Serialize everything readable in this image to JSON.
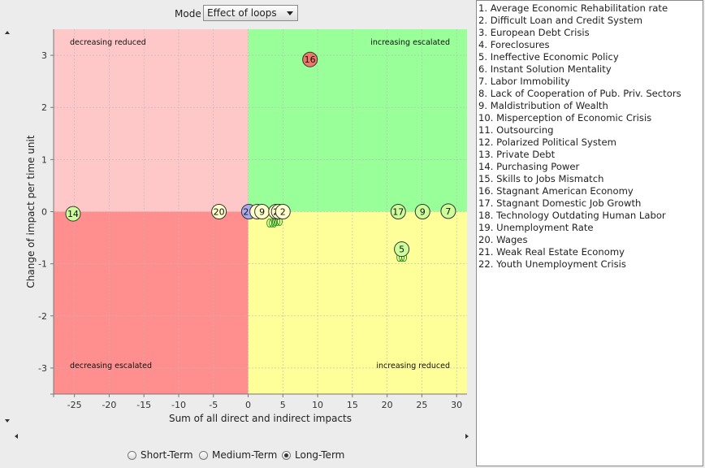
{
  "mode": {
    "label": "Mode",
    "selected": "Effect of loops"
  },
  "term_options": [
    {
      "label": "Short-Term",
      "checked": false
    },
    {
      "label": "Medium-Term",
      "checked": false
    },
    {
      "label": "Long-Term",
      "checked": true
    }
  ],
  "legend": [
    "1. Average Economic Rehabilitation rate",
    "2. Difficult Loan and Credit System",
    "3. European Debt Crisis",
    "4. Foreclosures",
    "5. Ineffective Economic Policy",
    "6. Instant Solution Mentality",
    "7. Labor Immobility",
    "8. Lack of Cooperation of Pub. Priv. Sectors",
    "9. Maldistribution of Wealth",
    "10. Misperception of Economic Crisis",
    "11. Outsourcing",
    "12. Polarized Political System",
    "13. Private Debt",
    "14. Purchasing Power",
    "15. Skills to Jobs Mismatch",
    "16. Stagnant American Economy",
    "17. Stagnant Domestic Job Growth",
    "18. Technology Outdating Human Labor",
    "19. Unemployment Rate",
    "20. Wages",
    "21. Weak Real Estate Economy",
    "22. Youth Unemployment Crisis"
  ],
  "chart_data": {
    "type": "scatter",
    "xlabel": "Sum of all direct and indirect impacts",
    "ylabel": "Change of impact per time unit",
    "xlim": [
      -28,
      31.5
    ],
    "ylim": [
      -3.5,
      3.5
    ],
    "xticks": [
      -25,
      -20,
      -15,
      -10,
      -5,
      0,
      5,
      10,
      15,
      20,
      25,
      30
    ],
    "yticks": [
      -3,
      -2,
      -1,
      0,
      1,
      2,
      3
    ],
    "grid": true,
    "quadrants": [
      {
        "label": "decreasing reduced",
        "position": "top-left",
        "color": "#ffc8c8"
      },
      {
        "label": "increasing escalated",
        "position": "top-right",
        "color": "#99ff99"
      },
      {
        "label": "decreasing escalated",
        "position": "bottom-left",
        "color": "#ff8f8f"
      },
      {
        "label": "increasing reduced",
        "position": "bottom-right",
        "color": "#ffff99"
      }
    ],
    "points": [
      {
        "id": "14",
        "x": -25.2,
        "y": -0.04,
        "color": "#ccff99"
      },
      {
        "id": "20",
        "x": -4.2,
        "y": 0.0,
        "color": "#ffffcc"
      },
      {
        "id": "21",
        "x": 0.1,
        "y": 0.0,
        "color": "#aaaaee"
      },
      {
        "id": "1",
        "x": 1.3,
        "y": 0.0,
        "color": "#ffffcc"
      },
      {
        "id": "9",
        "x": 2.0,
        "y": 0.0,
        "color": "#ffffcc"
      },
      {
        "id": "4",
        "x": 4.0,
        "y": 0.0,
        "color": "#ffffcc"
      },
      {
        "id": "22",
        "x": 4.4,
        "y": 0.0,
        "color": "#ffffcc"
      },
      {
        "id": "2",
        "x": 5.0,
        "y": 0.0,
        "color": "#ffffcc"
      },
      {
        "id": "16",
        "x": 8.9,
        "y": 2.92,
        "color": "#ee7766"
      },
      {
        "id": "17",
        "x": 21.6,
        "y": 0.0,
        "color": "#ccff99"
      },
      {
        "id": "9",
        "x": 25.1,
        "y": 0.0,
        "color": "#ccff99"
      },
      {
        "id": "7",
        "x": 28.8,
        "y": 0.01,
        "color": "#ccff99"
      },
      {
        "id": "5",
        "x": 22.1,
        "y": -0.72,
        "color": "#ccff99"
      }
    ]
  }
}
